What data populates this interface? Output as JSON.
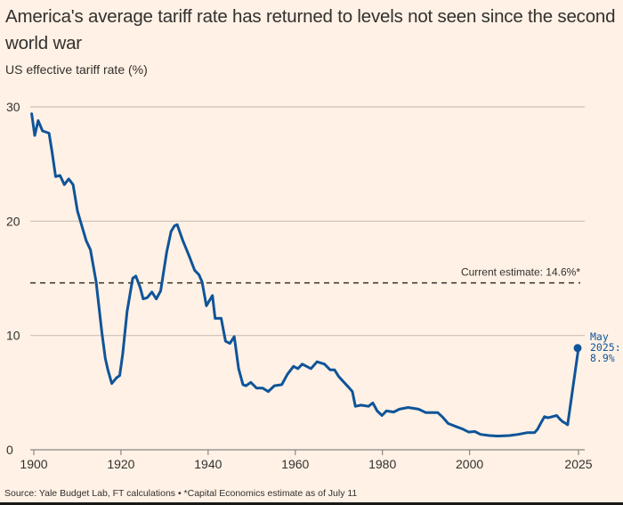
{
  "title": "America's average tariff rate has returned to levels not seen since the second world war",
  "subtitle": "US effective tariff rate (%)",
  "source": "Source: Yale Budget Lab, FT calculations • *Capital Economics estimate as of July 11",
  "colors": {
    "background": "#fff1e5",
    "line": "#0f5499",
    "grid": "#ccc1b7",
    "reference": "#33302e",
    "text": "#33302e"
  },
  "chart_data": {
    "type": "line",
    "title": "America's average tariff rate has returned to levels not seen since the second world war",
    "ylabel": "US effective tariff rate (%)",
    "xlabel": "",
    "xlim": [
      1900,
      2025
    ],
    "ylim": [
      0,
      30
    ],
    "x_ticks": [
      1900,
      1920,
      1940,
      1960,
      1980,
      2000,
      2025
    ],
    "x_tick_labels": [
      "1900",
      "1920",
      "1940",
      "1960",
      "1980",
      "2000",
      "2025"
    ],
    "y_ticks": [
      0,
      10,
      20,
      30
    ],
    "y_tick_labels": [
      "0",
      "10",
      "20",
      "30"
    ],
    "grid": true,
    "reference_line": {
      "value": 14.6,
      "label": "Current estimate: 14.6%*",
      "style": "dashed"
    },
    "end_annotation": {
      "x": 2025,
      "y": 8.9,
      "lines": [
        "May",
        "2025:",
        "8.9%"
      ]
    },
    "series": [
      {
        "name": "US effective tariff rate",
        "x": [
          1899.5,
          1900.2,
          1901,
          1902,
          1903.5,
          1904.2,
          1905,
          1906,
          1907,
          1908,
          1909,
          1910,
          1911,
          1912,
          1913,
          1914.3,
          1915.6,
          1916.4,
          1917,
          1917.9,
          1919,
          1919.7,
          1920.4,
          1921.4,
          1922.7,
          1923.4,
          1924.4,
          1925.1,
          1926,
          1927.1,
          1928.1,
          1929.1,
          1930.5,
          1931.5,
          1932.3,
          1932.9,
          1934.2,
          1935.6,
          1936.9,
          1937.9,
          1938.6,
          1939.6,
          1941,
          1941.6,
          1943,
          1944,
          1945,
          1946,
          1947,
          1948,
          1948.7,
          1949.8,
          1951.1,
          1952.5,
          1953.8,
          1955.2,
          1956.9,
          1958.2,
          1959.6,
          1960.6,
          1961.6,
          1963.6,
          1965,
          1966.7,
          1968,
          1969,
          1970,
          1972.4,
          1973.1,
          1973.8,
          1975.1,
          1976.8,
          1977.8,
          1978.8,
          1979.9,
          1980.9,
          1982.6,
          1983.9,
          1985.9,
          1988.3,
          1990,
          1992.7,
          1993.7,
          1995.1,
          1997.1,
          1998.5,
          1999.8,
          2001.2,
          2002.5,
          2004.5,
          2006.5,
          2009.2,
          2011.2,
          2013.2,
          2014.9,
          2015.6,
          2016.3,
          2017.2,
          2018,
          2019,
          2020,
          2020.7,
          2021.4,
          2022.1,
          2022.4,
          2022.5
        ],
        "values": [
          29.4,
          27.5,
          28.8,
          27.9,
          27.7,
          26.0,
          23.9,
          24.0,
          23.2,
          23.7,
          23.2,
          20.9,
          19.6,
          18.3,
          17.5,
          14.7,
          10.3,
          8.0,
          7.0,
          5.8,
          6.3,
          6.5,
          8.4,
          12.1,
          15.0,
          15.2,
          14.2,
          13.2,
          13.3,
          13.8,
          13.2,
          13.9,
          17.3,
          19.1,
          19.6,
          19.7,
          18.3,
          17.0,
          15.7,
          15.3,
          14.7,
          12.6,
          13.5,
          11.5,
          11.5,
          9.5,
          9.3,
          9.9,
          7.1,
          5.7,
          5.6,
          5.9,
          5.4,
          5.4,
          5.1,
          5.6,
          5.7,
          6.6,
          7.3,
          7.1,
          7.5,
          7.1,
          7.7,
          7.5,
          7.0,
          7.0,
          6.4,
          5.4,
          5.1,
          3.8,
          3.9,
          3.8,
          4.1,
          3.4,
          3.0,
          3.4,
          3.3,
          3.55,
          3.7,
          3.55,
          3.25,
          3.25,
          2.9,
          2.3,
          2.0,
          1.8,
          1.55,
          1.6,
          1.35,
          1.25,
          1.2,
          1.25,
          1.35,
          1.5,
          1.5,
          1.8,
          2.3,
          2.9,
          2.8,
          2.9,
          3.0,
          2.7,
          2.45,
          2.3,
          2.2,
          2.2
        ]
      },
      {
        "name": "May 2025 spike",
        "x": [
          2022.5,
          2025
        ],
        "values": [
          2.2,
          8.9
        ]
      }
    ]
  }
}
